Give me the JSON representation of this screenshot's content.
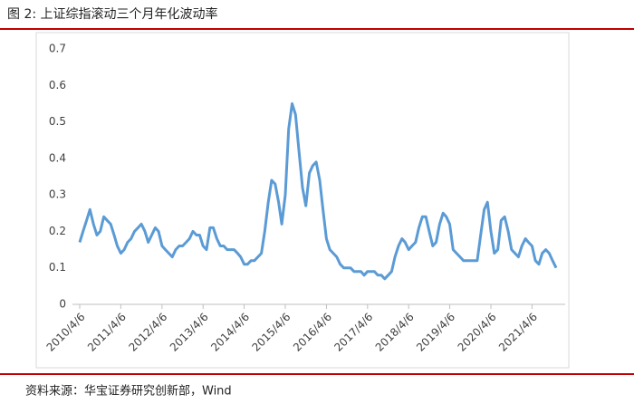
{
  "chart_data": {
    "type": "line",
    "title": "图 2:  上证综指滚动三个月年化波动率",
    "source": "资料来源：华宝证券研究创新部，Wind",
    "x": [
      "2010/4/6",
      "2010/5/6",
      "2010/6/6",
      "2010/7/6",
      "2010/8/6",
      "2010/9/6",
      "2010/10/6",
      "2010/11/6",
      "2010/12/6",
      "2011/1/6",
      "2011/2/6",
      "2011/3/6",
      "2011/4/6",
      "2011/5/6",
      "2011/6/6",
      "2011/7/6",
      "2011/8/6",
      "2011/9/6",
      "2011/10/6",
      "2011/11/6",
      "2011/12/6",
      "2012/1/6",
      "2012/2/6",
      "2012/3/6",
      "2012/4/6",
      "2012/5/6",
      "2012/6/6",
      "2012/7/6",
      "2012/8/6",
      "2012/9/6",
      "2012/10/6",
      "2012/11/6",
      "2012/12/6",
      "2013/1/6",
      "2013/2/6",
      "2013/3/6",
      "2013/4/6",
      "2013/5/6",
      "2013/6/6",
      "2013/7/6",
      "2013/8/6",
      "2013/9/6",
      "2013/10/6",
      "2013/11/6",
      "2013/12/6",
      "2014/1/6",
      "2014/2/6",
      "2014/3/6",
      "2014/4/6",
      "2014/5/6",
      "2014/6/6",
      "2014/7/6",
      "2014/8/6",
      "2014/9/6",
      "2014/10/6",
      "2014/11/6",
      "2014/12/6",
      "2015/1/6",
      "2015/2/6",
      "2015/3/6",
      "2015/4/6",
      "2015/5/6",
      "2015/6/6",
      "2015/7/6",
      "2015/8/6",
      "2015/9/6",
      "2015/10/6",
      "2015/11/6",
      "2015/12/6",
      "2016/1/6",
      "2016/2/6",
      "2016/3/6",
      "2016/4/6",
      "2016/5/6",
      "2016/6/6",
      "2016/7/6",
      "2016/8/6",
      "2016/9/6",
      "2016/10/6",
      "2016/11/6",
      "2016/12/6",
      "2017/1/6",
      "2017/2/6",
      "2017/3/6",
      "2017/4/6",
      "2017/5/6",
      "2017/6/6",
      "2017/7/6",
      "2017/8/6",
      "2017/9/6",
      "2017/10/6",
      "2017/11/6",
      "2017/12/6",
      "2018/1/6",
      "2018/2/6",
      "2018/3/6",
      "2018/4/6",
      "2018/5/6",
      "2018/6/6",
      "2018/7/6",
      "2018/8/6",
      "2018/9/6",
      "2018/10/6",
      "2018/11/6",
      "2018/12/6",
      "2019/1/6",
      "2019/2/6",
      "2019/3/6",
      "2019/4/6",
      "2019/5/6",
      "2019/6/6",
      "2019/7/6",
      "2019/8/6",
      "2019/9/6",
      "2019/10/6",
      "2019/11/6",
      "2019/12/6",
      "2020/1/6",
      "2020/2/6",
      "2020/3/6",
      "2020/4/6",
      "2020/5/6",
      "2020/6/6",
      "2020/7/6",
      "2020/8/6",
      "2020/9/6",
      "2020/10/6",
      "2020/11/6",
      "2020/12/6",
      "2021/1/6",
      "2021/2/6",
      "2021/3/6",
      "2021/4/6",
      "2021/5/6",
      "2021/6/6",
      "2021/7/6",
      "2021/8/6",
      "2021/9/6",
      "2021/10/6",
      "2021/11/6"
    ],
    "series": [
      {
        "name": "上证综指滚动三个月年化波动率",
        "color": "#5b9bd5",
        "values": [
          0.17,
          0.2,
          0.23,
          0.26,
          0.22,
          0.19,
          0.2,
          0.24,
          0.23,
          0.22,
          0.19,
          0.16,
          0.14,
          0.15,
          0.17,
          0.18,
          0.2,
          0.21,
          0.22,
          0.2,
          0.17,
          0.19,
          0.21,
          0.2,
          0.16,
          0.15,
          0.14,
          0.13,
          0.15,
          0.16,
          0.16,
          0.17,
          0.18,
          0.2,
          0.19,
          0.19,
          0.16,
          0.15,
          0.21,
          0.21,
          0.18,
          0.16,
          0.16,
          0.15,
          0.15,
          0.15,
          0.14,
          0.13,
          0.11,
          0.11,
          0.12,
          0.12,
          0.13,
          0.14,
          0.2,
          0.28,
          0.34,
          0.33,
          0.28,
          0.22,
          0.3,
          0.48,
          0.55,
          0.52,
          0.42,
          0.32,
          0.27,
          0.36,
          0.38,
          0.39,
          0.34,
          0.26,
          0.18,
          0.15,
          0.14,
          0.13,
          0.11,
          0.1,
          0.1,
          0.1,
          0.09,
          0.09,
          0.09,
          0.08,
          0.09,
          0.09,
          0.09,
          0.08,
          0.08,
          0.07,
          0.08,
          0.09,
          0.13,
          0.16,
          0.18,
          0.17,
          0.15,
          0.16,
          0.17,
          0.21,
          0.24,
          0.24,
          0.2,
          0.16,
          0.17,
          0.22,
          0.25,
          0.24,
          0.22,
          0.15,
          0.14,
          0.13,
          0.12,
          0.12,
          0.12,
          0.12,
          0.12,
          0.19,
          0.26,
          0.28,
          0.2,
          0.14,
          0.15,
          0.23,
          0.24,
          0.2,
          0.15,
          0.14,
          0.13,
          0.16,
          0.18,
          0.17,
          0.16,
          0.12,
          0.11,
          0.14,
          0.15,
          0.14,
          0.12,
          0.1
        ]
      }
    ],
    "xlim": [
      "2010/4/6",
      "2021/11/6"
    ],
    "xticks": [
      "2010/4/6",
      "2011/4/6",
      "2012/4/6",
      "2013/4/6",
      "2014/4/6",
      "2015/4/6",
      "2016/4/6",
      "2017/4/6",
      "2018/4/6",
      "2019/4/6",
      "2020/4/6",
      "2021/4/6"
    ],
    "ylim": [
      0,
      0.7
    ],
    "yticks": [
      0,
      0.1,
      0.2,
      0.3,
      0.4,
      0.5,
      0.6,
      0.7
    ],
    "grid": false
  }
}
